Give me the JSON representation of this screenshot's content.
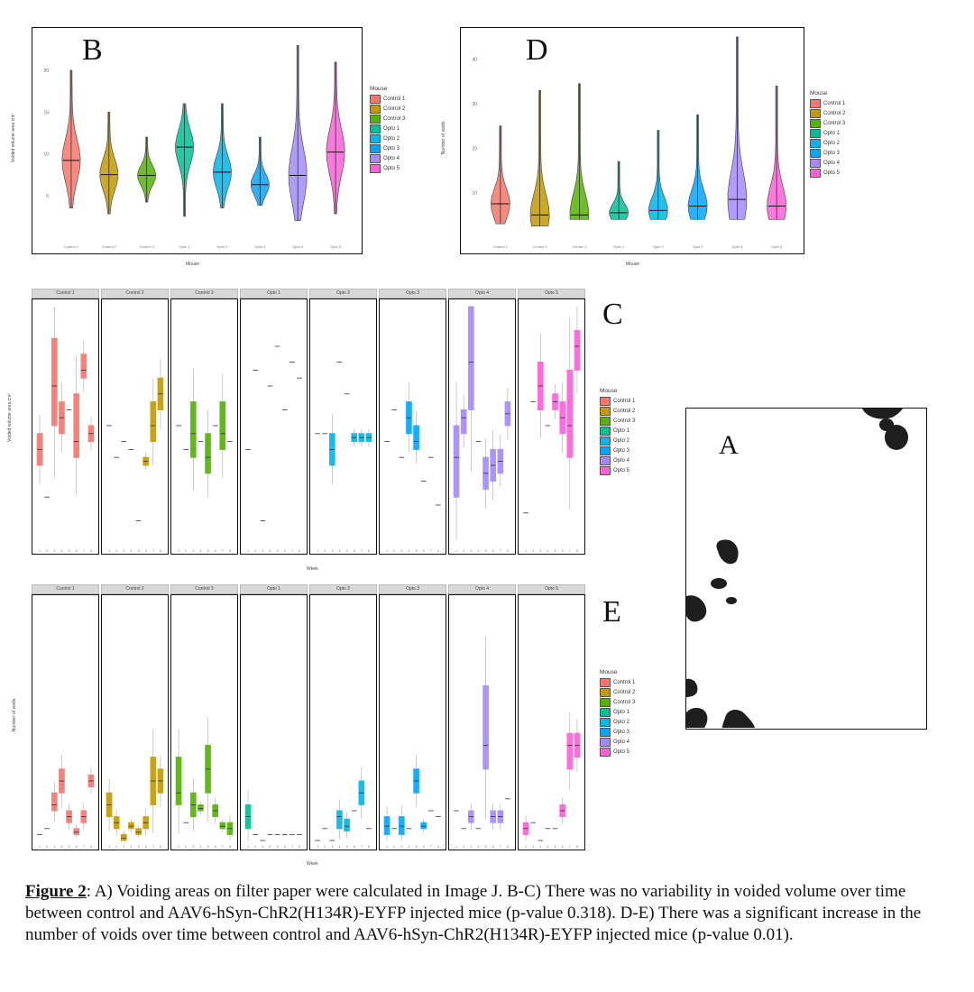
{
  "figure_label": "Figure 2",
  "caption": ": A) Voiding areas on filter paper were calculated in Image J. B-C) There was no variability in voided volume over time between control and AAV6-hSyn-ChR2(H134R)-EYFP injected mice (p-value 0.318). D-E) There was a significant increase in the number of voids over time between control and AAV6-hSyn-ChR2(H134R)-EYFP injected mice (p-value 0.01).",
  "panels": {
    "A": {
      "letter": "A"
    },
    "B": {
      "letter": "B",
      "ylabel": "Voided volume area cm²",
      "xlabel": "Mouse"
    },
    "C": {
      "letter": "C",
      "ylabel": "Voided volume area cm²",
      "xlabel": "Week"
    },
    "D": {
      "letter": "D",
      "ylabel": "Number of voids",
      "xlabel": "Mouse"
    },
    "E": {
      "letter": "E",
      "ylabel": "Number of voids",
      "xlabel": "Week"
    }
  },
  "legend": {
    "title": "Mouse",
    "items": [
      {
        "name": "Control 1",
        "color": "#f8766d"
      },
      {
        "name": "Control 2",
        "color": "#c49a00"
      },
      {
        "name": "Control 3",
        "color": "#53b400"
      },
      {
        "name": "Opto 1",
        "color": "#00c094"
      },
      {
        "name": "Opto 2",
        "color": "#00b6eb"
      },
      {
        "name": "Opto 3",
        "color": "#06a4ff"
      },
      {
        "name": "Opto 4",
        "color": "#a58aff"
      },
      {
        "name": "Opto 5",
        "color": "#fb61d7"
      }
    ]
  },
  "chart_data": [
    {
      "panel": "B",
      "type": "violin",
      "categories": [
        "Control 1",
        "Control 2",
        "Control 3",
        "Opto 1",
        "Opto 2",
        "Opto 3",
        "Opto 4",
        "Opto 5"
      ],
      "medians": [
        9.2,
        7.5,
        7.4,
        10.8,
        7.8,
        6.3,
        7.4,
        10.2
      ],
      "mins": [
        3.5,
        2.8,
        4.2,
        2.5,
        3.5,
        3.8,
        2.0,
        2.8
      ],
      "maxs": [
        20.0,
        15.0,
        12.0,
        16.0,
        16.0,
        12.0,
        23.0,
        21.0
      ],
      "ylim": [
        0,
        24
      ],
      "yticks": [
        5,
        10,
        15,
        20
      ]
    },
    {
      "panel": "D",
      "type": "violin",
      "categories": [
        "Control 1",
        "Control 2",
        "Control 3",
        "Opto 1",
        "Opto 2",
        "Opto 3",
        "Opto 4",
        "Opto 5"
      ],
      "medians": [
        7.5,
        5.0,
        5.0,
        5.5,
        6.0,
        7.0,
        8.5,
        7.0
      ],
      "mins": [
        3.0,
        2.5,
        4.0,
        4.0,
        4.0,
        4.0,
        4.0,
        4.0
      ],
      "maxs": [
        25.0,
        33.0,
        34.5,
        17.0,
        24.0,
        27.5,
        45.0,
        34.0
      ],
      "ylim": [
        0,
        45
      ],
      "yticks": [
        10,
        20,
        30,
        40
      ]
    },
    {
      "panel": "C",
      "type": "box",
      "facets": [
        "Control 1",
        "Control 2",
        "Control 3",
        "Opto 1",
        "Opto 2",
        "Opto 3",
        "Opto 4",
        "Opto 5"
      ],
      "ylim": [
        0,
        30
      ],
      "weeks": [
        1,
        2,
        3,
        4,
        5,
        6,
        7,
        8
      ],
      "boxes": [
        [
          [
            10,
            14,
            12
          ],
          [
            6,
            6,
            6
          ],
          [
            15,
            26,
            20
          ],
          [
            14,
            18,
            16
          ],
          [
            17,
            17,
            17
          ],
          [
            11,
            19,
            13
          ],
          [
            21,
            24,
            22
          ],
          [
            13,
            15,
            14
          ]
        ],
        [
          [
            15,
            15,
            15
          ],
          [
            11,
            11,
            11
          ],
          [
            13,
            13,
            13
          ],
          [
            12,
            12,
            12
          ],
          [
            3,
            3,
            3
          ],
          [
            10,
            11,
            10.5
          ],
          [
            13,
            18,
            15
          ],
          [
            17,
            21,
            19
          ]
        ],
        [
          [
            15,
            15,
            15
          ],
          [
            12,
            12,
            12
          ],
          [
            11,
            18,
            14
          ],
          [
            13,
            13,
            13
          ],
          [
            9,
            14,
            11
          ],
          [
            15,
            15,
            15
          ],
          [
            12,
            18,
            14
          ],
          [
            13,
            13,
            13
          ]
        ],
        [
          [
            12,
            12,
            12
          ],
          [
            22,
            22,
            22
          ],
          [
            3,
            3,
            3
          ],
          [
            20,
            20,
            20
          ],
          [
            25,
            25,
            25
          ],
          [
            17,
            17,
            17
          ],
          [
            23,
            23,
            23
          ],
          [
            21,
            21,
            21
          ]
        ],
        [
          [
            14,
            14,
            14
          ],
          [
            14,
            14,
            14
          ],
          [
            10,
            14,
            12
          ],
          [
            23,
            23,
            23
          ],
          [
            19,
            19,
            19
          ],
          [
            13,
            14,
            13.5
          ],
          [
            13,
            14,
            13.5
          ],
          [
            13,
            14,
            13.5
          ]
        ],
        [
          [
            13,
            13,
            13
          ],
          [
            17,
            17,
            17
          ],
          [
            11,
            11,
            11
          ],
          [
            14,
            18,
            16
          ],
          [
            12,
            15,
            13
          ],
          [
            8,
            8,
            8
          ],
          [
            11,
            11,
            11
          ],
          [
            5,
            5,
            5
          ]
        ],
        [
          [
            6,
            15,
            11
          ],
          [
            14,
            17,
            16
          ],
          [
            17,
            30,
            23
          ],
          [
            13,
            13,
            13
          ],
          [
            7,
            11,
            9
          ],
          [
            8,
            12,
            10
          ],
          [
            9,
            12,
            10.5
          ],
          [
            15,
            18,
            16.5
          ]
        ],
        [
          [
            4,
            4,
            4
          ],
          [
            18,
            18,
            18
          ],
          [
            17,
            23,
            20
          ],
          [
            15,
            15,
            15
          ],
          [
            17,
            19,
            18
          ],
          [
            14,
            18,
            16
          ],
          [
            11,
            22,
            15
          ],
          [
            22,
            27,
            25
          ]
        ]
      ]
    },
    {
      "panel": "E",
      "type": "box",
      "facets": [
        "Control 1",
        "Control 2",
        "Control 3",
        "Opto 1",
        "Opto 2",
        "Opto 3",
        "Opto 4",
        "Opto 5"
      ],
      "ylim": [
        0,
        20
      ],
      "weeks": [
        1,
        2,
        3,
        4,
        5,
        6,
        7,
        8
      ],
      "boxes": [
        [
          [
            0.5,
            0.5,
            0.5
          ],
          [
            1,
            1,
            1
          ],
          [
            2.5,
            4,
            3
          ],
          [
            4,
            6,
            5
          ],
          [
            1.5,
            2.5,
            2
          ],
          [
            0.5,
            1,
            0.7
          ],
          [
            1.5,
            2.5,
            2
          ],
          [
            4.5,
            5.5,
            5
          ]
        ],
        [
          [
            2,
            4,
            3
          ],
          [
            1,
            2,
            1.5
          ],
          [
            0,
            0.5,
            0.2
          ],
          [
            1,
            1.5,
            1.2
          ],
          [
            0.5,
            1,
            0.7
          ],
          [
            1,
            2,
            1.5
          ],
          [
            3,
            7,
            5
          ],
          [
            4,
            6,
            5
          ]
        ],
        [
          [
            3,
            7,
            4
          ],
          [
            1.5,
            1.5,
            1.5
          ],
          [
            2,
            4,
            3
          ],
          [
            2.5,
            3,
            2.7
          ],
          [
            4,
            8,
            6
          ],
          [
            2,
            3,
            2.5
          ],
          [
            1,
            1.5,
            1.2
          ],
          [
            0.5,
            1.5,
            1
          ]
        ],
        [
          [
            1,
            3,
            2
          ],
          [
            0.5,
            0.5,
            0.5
          ],
          [
            0,
            0,
            0
          ],
          [
            0.5,
            0.5,
            0.5
          ],
          [
            0.5,
            0.5,
            0.5
          ],
          [
            0.5,
            0.5,
            0.5
          ],
          [
            0.5,
            0.5,
            0.5
          ],
          [
            0.5,
            0.5,
            0.5
          ]
        ],
        [
          [
            0,
            0,
            0
          ],
          [
            1,
            1,
            1
          ],
          [
            0,
            0,
            0
          ],
          [
            1,
            2.5,
            2
          ],
          [
            0.8,
            1.8,
            1.2
          ],
          [
            2.5,
            2.5,
            2.5
          ],
          [
            3,
            5,
            4
          ],
          [
            1,
            1,
            1
          ]
        ],
        [
          [
            0.5,
            2,
            1.2
          ],
          [
            1,
            1,
            1
          ],
          [
            0.5,
            2,
            1.2
          ],
          [
            1,
            1,
            1
          ],
          [
            4,
            6,
            5
          ],
          [
            1,
            1.5,
            1.2
          ],
          [
            2.5,
            2.5,
            2.5
          ],
          [
            2,
            2,
            2
          ]
        ],
        [
          [
            2.5,
            2.5,
            2.5
          ],
          [
            1,
            1,
            1
          ],
          [
            1.5,
            2.5,
            2
          ],
          [
            1,
            1,
            1
          ],
          [
            6,
            13,
            8
          ],
          [
            1.5,
            2.5,
            2
          ],
          [
            1.5,
            2.5,
            2
          ],
          [
            3.5,
            3.5,
            3.5
          ]
        ],
        [
          [
            0.5,
            1.5,
            1
          ],
          [
            1.5,
            1.5,
            1.5
          ],
          [
            0,
            0,
            0
          ],
          [
            1,
            1,
            1
          ],
          [
            1,
            1,
            1
          ],
          [
            2,
            3,
            2.5
          ],
          [
            6,
            9,
            8
          ],
          [
            7,
            9,
            8
          ]
        ]
      ]
    }
  ]
}
